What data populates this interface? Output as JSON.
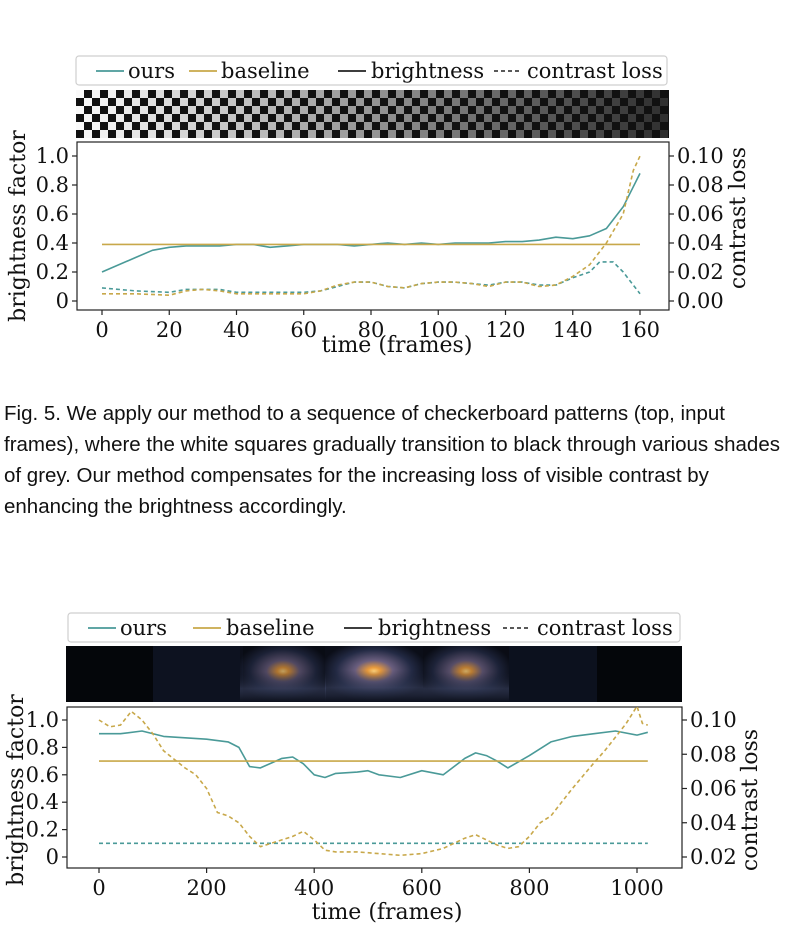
{
  "figure1": {
    "caption_label": "Fig. 5.",
    "caption_text": "We apply our method to a sequence of checkerboard patterns (top, input frames), where the white squares gradually transition to black through various shades of grey. Our method compensates for the increasing loss of visible contrast by enhancing the brightness accordingly.",
    "legend": [
      "ours",
      "baseline",
      "brightness",
      "contrast loss"
    ],
    "chart_data": {
      "type": "line",
      "xlabel": "time (frames)",
      "ylabel": "brightness factor",
      "y2label": "contrast loss",
      "xlim": [
        0,
        160
      ],
      "ylim": [
        0,
        1.0
      ],
      "y2lim": [
        0,
        0.1
      ],
      "xticks": [
        "0",
        "20",
        "40",
        "60",
        "80",
        "100",
        "120",
        "140",
        "160"
      ],
      "yticks": [
        "0",
        "0.2",
        "0.4",
        "0.6",
        "0.8",
        "1.0"
      ],
      "y2ticks": [
        "0.00",
        "0.02",
        "0.04",
        "0.06",
        "0.08",
        "0.10"
      ],
      "series": [
        {
          "name": "ours",
          "kind": "brightness",
          "color": "#4a9a98",
          "x": [
            0,
            10,
            15,
            20,
            25,
            30,
            35,
            40,
            45,
            50,
            55,
            60,
            65,
            70,
            75,
            80,
            85,
            90,
            95,
            100,
            105,
            110,
            115,
            120,
            125,
            130,
            135,
            140,
            145,
            150,
            155,
            160
          ],
          "y": [
            0.2,
            0.3,
            0.35,
            0.37,
            0.38,
            0.38,
            0.38,
            0.39,
            0.39,
            0.37,
            0.38,
            0.39,
            0.39,
            0.39,
            0.38,
            0.39,
            0.4,
            0.39,
            0.4,
            0.39,
            0.4,
            0.4,
            0.4,
            0.41,
            0.41,
            0.42,
            0.44,
            0.43,
            0.45,
            0.5,
            0.65,
            0.88
          ]
        },
        {
          "name": "baseline",
          "kind": "brightness",
          "color": "#c8a84a",
          "x": [
            0,
            160
          ],
          "y": [
            0.39,
            0.39
          ]
        },
        {
          "name": "ours",
          "kind": "contrast loss",
          "color": "#4a9a98",
          "x": [
            0,
            10,
            20,
            25,
            30,
            35,
            40,
            50,
            60,
            65,
            70,
            75,
            80,
            85,
            90,
            95,
            100,
            105,
            110,
            115,
            120,
            125,
            130,
            135,
            140,
            145,
            148,
            152,
            155,
            160
          ],
          "y": [
            0.009,
            0.007,
            0.006,
            0.008,
            0.008,
            0.008,
            0.006,
            0.006,
            0.006,
            0.007,
            0.01,
            0.013,
            0.013,
            0.01,
            0.009,
            0.012,
            0.013,
            0.013,
            0.012,
            0.011,
            0.013,
            0.013,
            0.011,
            0.011,
            0.016,
            0.02,
            0.027,
            0.027,
            0.02,
            0.005
          ]
        },
        {
          "name": "baseline",
          "kind": "contrast loss",
          "color": "#c8a84a",
          "x": [
            0,
            10,
            20,
            25,
            30,
            35,
            40,
            50,
            60,
            65,
            70,
            75,
            80,
            85,
            90,
            95,
            100,
            105,
            110,
            115,
            120,
            125,
            130,
            135,
            140,
            145,
            150,
            155,
            158,
            160
          ],
          "y": [
            0.005,
            0.005,
            0.004,
            0.007,
            0.008,
            0.007,
            0.005,
            0.005,
            0.005,
            0.007,
            0.011,
            0.013,
            0.013,
            0.01,
            0.009,
            0.012,
            0.013,
            0.013,
            0.012,
            0.01,
            0.013,
            0.013,
            0.01,
            0.011,
            0.017,
            0.025,
            0.04,
            0.06,
            0.09,
            0.1
          ]
        }
      ]
    }
  },
  "figure2": {
    "legend": [
      "ours",
      "baseline",
      "brightness",
      "contrast loss"
    ],
    "chart_data": {
      "type": "line",
      "xlabel": "time (frames)",
      "ylabel": "brightness factor",
      "y2label": "contrast loss",
      "xlim": [
        0,
        1000
      ],
      "ylim": [
        0,
        1.0
      ],
      "y2lim": [
        0.02,
        0.1
      ],
      "xticks": [
        "0",
        "200",
        "400",
        "600",
        "800",
        "1000"
      ],
      "yticks": [
        "0",
        "0.2",
        "0.4",
        "0.6",
        "0.8",
        "1.0"
      ],
      "y2ticks": [
        "0.02",
        "0.04",
        "0.06",
        "0.08",
        "0.10"
      ],
      "series": [
        {
          "name": "ours",
          "kind": "brightness",
          "color": "#4a9a98",
          "x": [
            0,
            40,
            80,
            120,
            160,
            200,
            240,
            260,
            280,
            300,
            340,
            360,
            380,
            400,
            420,
            440,
            480,
            500,
            520,
            560,
            600,
            640,
            680,
            700,
            720,
            740,
            760,
            800,
            840,
            880,
            920,
            960,
            1000,
            1020
          ],
          "y": [
            0.9,
            0.9,
            0.92,
            0.88,
            0.87,
            0.86,
            0.84,
            0.8,
            0.66,
            0.65,
            0.72,
            0.73,
            0.68,
            0.6,
            0.58,
            0.61,
            0.62,
            0.63,
            0.6,
            0.58,
            0.63,
            0.6,
            0.72,
            0.76,
            0.74,
            0.7,
            0.65,
            0.74,
            0.84,
            0.88,
            0.9,
            0.92,
            0.89,
            0.91
          ]
        },
        {
          "name": "baseline",
          "kind": "brightness",
          "color": "#c8a84a",
          "x": [
            0,
            1020
          ],
          "y": [
            0.7,
            0.7
          ]
        },
        {
          "name": "ours",
          "kind": "contrast loss",
          "color": "#4a9a98",
          "x": [
            0,
            1020
          ],
          "y": [
            0.028,
            0.028
          ]
        },
        {
          "name": "baseline",
          "kind": "contrast loss",
          "color": "#c8a84a",
          "x": [
            0,
            20,
            40,
            60,
            80,
            100,
            120,
            140,
            160,
            180,
            200,
            220,
            240,
            260,
            280,
            300,
            320,
            340,
            360,
            380,
            400,
            420,
            440,
            480,
            520,
            560,
            600,
            640,
            680,
            700,
            720,
            740,
            760,
            780,
            800,
            820,
            840,
            880,
            920,
            940,
            960,
            980,
            1000,
            1010,
            1020
          ],
          "y": [
            0.1,
            0.096,
            0.097,
            0.105,
            0.1,
            0.092,
            0.082,
            0.077,
            0.072,
            0.068,
            0.06,
            0.046,
            0.044,
            0.04,
            0.032,
            0.026,
            0.028,
            0.03,
            0.032,
            0.035,
            0.03,
            0.024,
            0.023,
            0.023,
            0.022,
            0.021,
            0.022,
            0.025,
            0.031,
            0.033,
            0.03,
            0.027,
            0.025,
            0.026,
            0.032,
            0.04,
            0.044,
            0.06,
            0.075,
            0.082,
            0.09,
            0.098,
            0.108,
            0.098,
            0.097
          ]
        }
      ]
    }
  },
  "colors": {
    "ours": "#4a9a98",
    "baseline": "#c8a84a",
    "axis": "#111111"
  }
}
